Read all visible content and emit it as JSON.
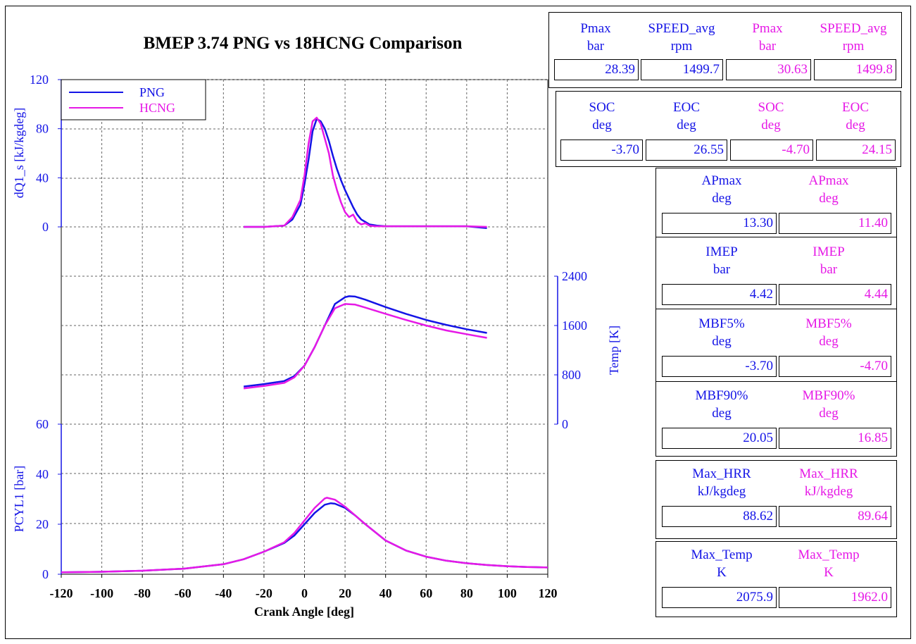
{
  "title": "BMEP 3.74 PNG vs 18HCNG Comparison",
  "colors": {
    "png": "#1414e6",
    "hcng": "#e619e6",
    "axis": "#1414e6"
  },
  "chart_data": [
    {
      "type": "line",
      "ylabel": "dQ1_s [kJ/kgdeg]",
      "ylim": [
        0,
        120
      ],
      "yticks": [
        "0",
        "40",
        "80",
        "120"
      ],
      "ytick_values": [
        0,
        40,
        80,
        120
      ],
      "legend": {
        "placement": "top-left",
        "entries": [
          "PNG",
          "HCNG"
        ]
      },
      "series": [
        {
          "name": "PNG",
          "x": [
            -30,
            -20,
            -10,
            -6,
            -2,
            0,
            2,
            4,
            6,
            8,
            10,
            12,
            14,
            16,
            18,
            20,
            22,
            24,
            26,
            28,
            30,
            32,
            34,
            36,
            40,
            50,
            60,
            70,
            80,
            90
          ],
          "y": [
            0,
            0,
            1,
            6,
            18,
            35,
            55,
            78,
            88,
            86,
            80,
            70,
            58,
            47,
            38,
            30,
            23,
            16,
            10,
            6,
            4,
            2,
            1.5,
            1,
            0.5,
            0.5,
            0.5,
            0.5,
            0.5,
            -1
          ]
        },
        {
          "name": "HCNG",
          "x": [
            -30,
            -20,
            -10,
            -6,
            -2,
            0,
            2,
            4,
            6,
            8,
            10,
            12,
            14,
            16,
            18,
            20,
            22,
            24,
            26,
            28,
            30,
            32,
            35,
            40,
            50,
            60,
            70,
            80,
            90
          ],
          "y": [
            0,
            0,
            1,
            8,
            22,
            42,
            68,
            86,
            89,
            84,
            72,
            60,
            42,
            30,
            20,
            12,
            8,
            10,
            4,
            2,
            3,
            1,
            0.5,
            0.5,
            0.5,
            0.5,
            0.5,
            0.5,
            0
          ]
        }
      ]
    },
    {
      "type": "line",
      "ylabel": "Temp [K]",
      "ylim": [
        0,
        2400
      ],
      "yticks": [
        "0",
        "800",
        "1600",
        "2400"
      ],
      "ytick_values": [
        0,
        800,
        1600,
        2400
      ],
      "series": [
        {
          "name": "PNG",
          "x": [
            -30,
            -20,
            -10,
            -5,
            0,
            5,
            10,
            15,
            20,
            22,
            25,
            30,
            40,
            50,
            60,
            70,
            80,
            90
          ],
          "y": [
            610,
            650,
            700,
            780,
            950,
            1250,
            1600,
            1950,
            2060,
            2075,
            2070,
            2020,
            1900,
            1790,
            1690,
            1610,
            1540,
            1480
          ]
        },
        {
          "name": "HCNG",
          "x": [
            -30,
            -20,
            -10,
            -5,
            0,
            5,
            10,
            15,
            20,
            25,
            30,
            40,
            50,
            60,
            70,
            80,
            90
          ],
          "y": [
            580,
            620,
            670,
            760,
            950,
            1250,
            1600,
            1880,
            1950,
            1940,
            1890,
            1790,
            1690,
            1600,
            1520,
            1460,
            1400
          ]
        }
      ]
    },
    {
      "type": "line",
      "ylabel": "PCYL1 [bar]",
      "xlabel": "Crank Angle [deg]",
      "xlim": [
        -120,
        120
      ],
      "ylim": [
        0,
        60
      ],
      "xticks": [
        "-120",
        "-100",
        "-80",
        "-60",
        "-40",
        "-20",
        "0",
        "20",
        "40",
        "60",
        "80",
        "100",
        "120"
      ],
      "xtick_values": [
        -120,
        -100,
        -80,
        -60,
        -40,
        -20,
        0,
        20,
        40,
        60,
        80,
        100,
        120
      ],
      "yticks": [
        "0",
        "20",
        "40",
        "60"
      ],
      "ytick_values": [
        0,
        20,
        40,
        60
      ],
      "series": [
        {
          "name": "PNG",
          "x": [
            -120,
            -100,
            -80,
            -60,
            -40,
            -30,
            -20,
            -10,
            -5,
            0,
            5,
            10,
            13,
            15,
            20,
            25,
            30,
            40,
            50,
            60,
            70,
            80,
            90,
            100,
            110,
            120
          ],
          "y": [
            0.8,
            1.0,
            1.4,
            2.2,
            4.0,
            6.0,
            9.0,
            12.5,
            15.5,
            20.0,
            24.5,
            27.8,
            28.4,
            28.2,
            26.5,
            23.5,
            20.0,
            13.5,
            9.5,
            7.0,
            5.4,
            4.4,
            3.7,
            3.2,
            2.9,
            2.7
          ]
        },
        {
          "name": "HCNG",
          "x": [
            -120,
            -100,
            -80,
            -60,
            -40,
            -30,
            -20,
            -10,
            -5,
            0,
            5,
            10,
            11,
            15,
            20,
            25,
            30,
            40,
            50,
            60,
            70,
            80,
            90,
            100,
            110,
            120
          ],
          "y": [
            0.8,
            1.0,
            1.4,
            2.2,
            4.0,
            6.0,
            9.0,
            12.8,
            16.5,
            21.5,
            26.5,
            30.3,
            30.6,
            29.8,
            27.0,
            23.5,
            20.0,
            13.5,
            9.5,
            7.0,
            5.4,
            4.4,
            3.7,
            3.2,
            2.9,
            2.7
          ]
        }
      ]
    }
  ],
  "table": {
    "row1": {
      "headers": [
        [
          "Pmax",
          "bar"
        ],
        [
          "SPEED_avg",
          "rpm"
        ],
        [
          "Pmax",
          "bar"
        ],
        [
          "SPEED_avg",
          "rpm"
        ]
      ],
      "values": [
        "28.39",
        "1499.7",
        "30.63",
        "1499.8"
      ]
    },
    "row2": {
      "headers": [
        [
          "SOC",
          "deg"
        ],
        [
          "EOC",
          "deg"
        ],
        [
          "SOC",
          "deg"
        ],
        [
          "EOC",
          "deg"
        ]
      ],
      "values": [
        "-3.70",
        "26.55",
        "-4.70",
        "24.15"
      ]
    },
    "pairs": [
      {
        "h1": [
          "APmax",
          "deg"
        ],
        "h2": [
          "APmax",
          "deg"
        ],
        "v1": "13.30",
        "v2": "11.40"
      },
      {
        "h1": [
          "IMEP",
          "bar"
        ],
        "h2": [
          "IMEP",
          "bar"
        ],
        "v1": "4.42",
        "v2": "4.44"
      },
      {
        "h1": [
          "MBF5%",
          "deg"
        ],
        "h2": [
          "MBF5%",
          "deg"
        ],
        "v1": "-3.70",
        "v2": "-4.70"
      },
      {
        "h1": [
          "MBF90%",
          "deg"
        ],
        "h2": [
          "MBF90%",
          "deg"
        ],
        "v1": "20.05",
        "v2": "16.85"
      },
      {
        "h1": [
          "Max_HRR",
          "kJ/kgdeg"
        ],
        "h2": [
          "Max_HRR",
          "kJ/kgdeg"
        ],
        "v1": "88.62",
        "v2": "89.64"
      },
      {
        "h1": [
          "Max_Temp",
          "K"
        ],
        "h2": [
          "Max_Temp",
          "K"
        ],
        "v1": "2075.9",
        "v2": "1962.0"
      }
    ]
  }
}
